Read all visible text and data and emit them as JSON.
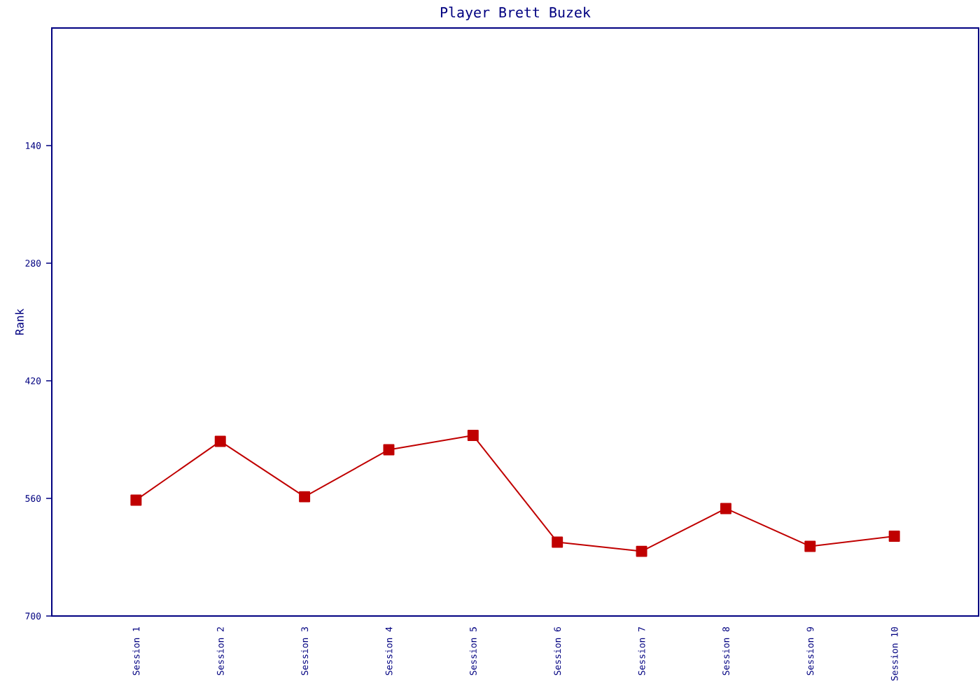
{
  "chart_data": {
    "type": "line",
    "title": "Player Brett Buzek",
    "ylabel": "Rank",
    "categories": [
      "Session 1",
      "Session 2",
      "Session 3",
      "Session 4",
      "Session 5",
      "Session 6",
      "Session 7",
      "Session 8",
      "Session 9",
      "Session 10"
    ],
    "series": [
      {
        "color": "#c00000",
        "values": [
          562,
          492,
          558,
          502,
          485,
          612,
          623,
          572,
          617,
          605
        ]
      }
    ],
    "ylim": [
      700,
      0
    ],
    "yticks": [
      140,
      280,
      420,
      560,
      700
    ],
    "marker": "square",
    "line_style": "solid"
  }
}
